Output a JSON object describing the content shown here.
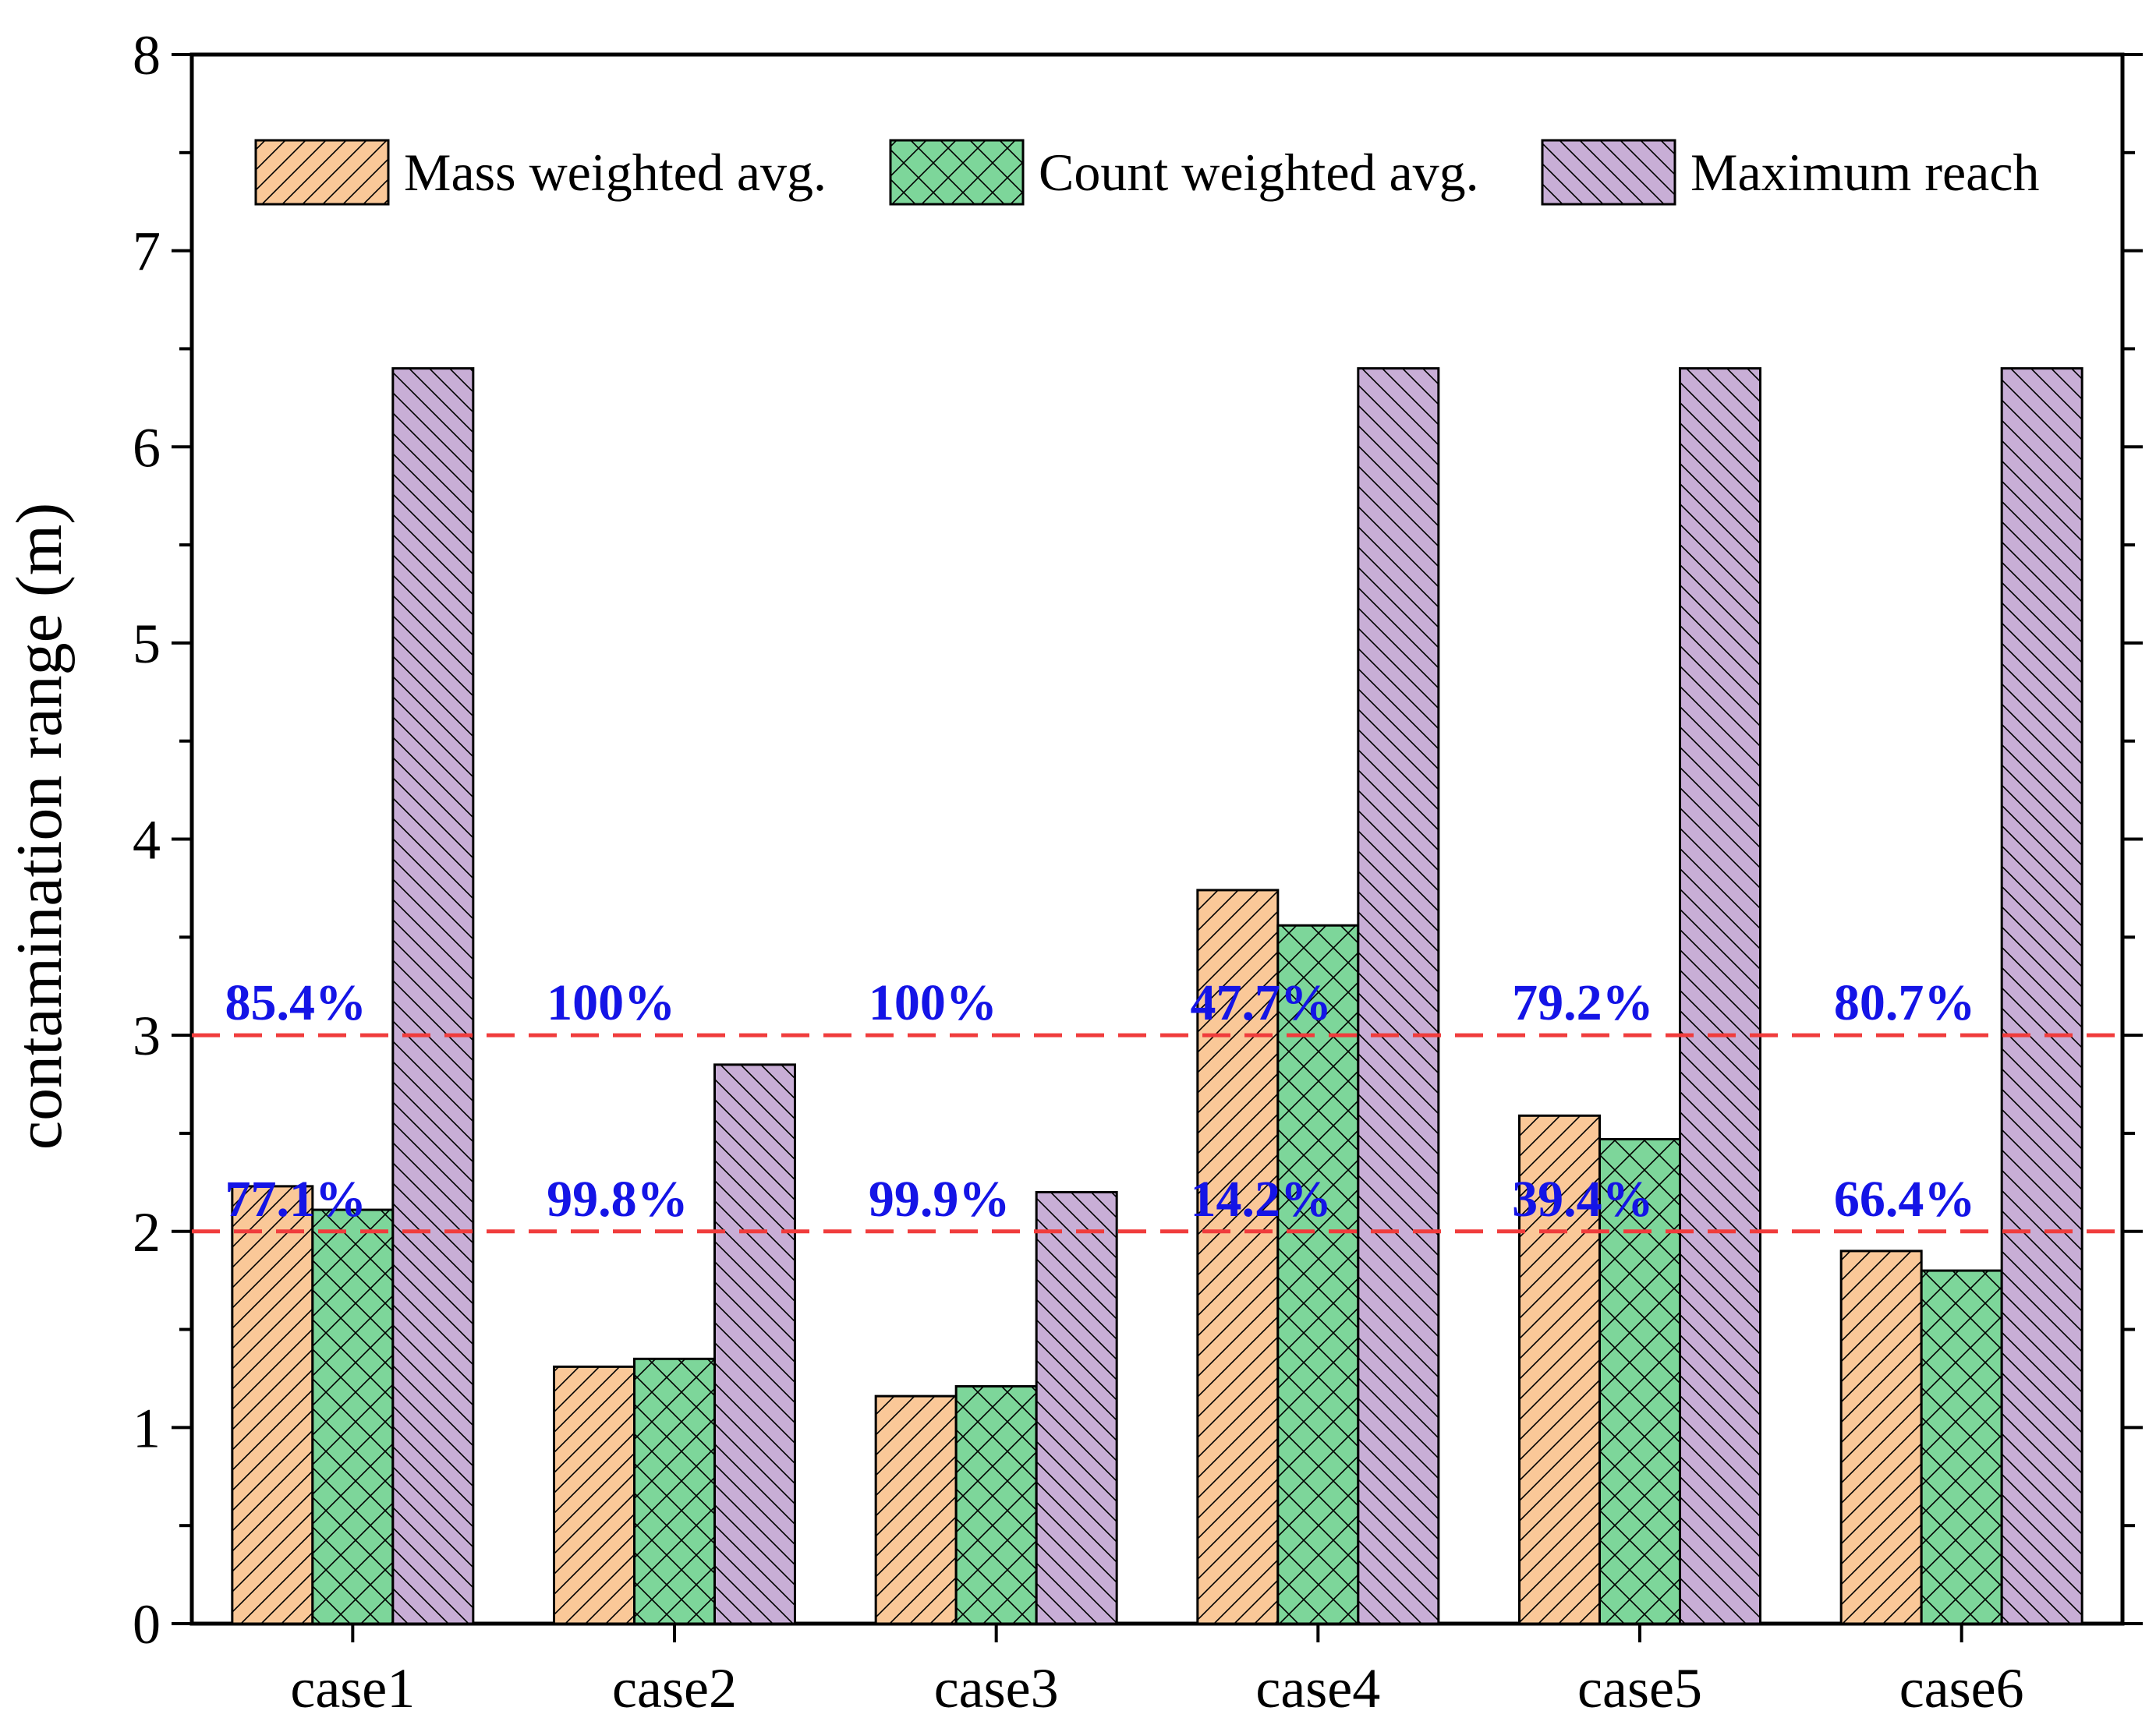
{
  "chart_data": {
    "type": "bar",
    "title": "",
    "xlabel": "",
    "ylabel": "contamination range (m)",
    "ylim": [
      0,
      8
    ],
    "yticks": [
      0,
      1,
      2,
      3,
      4,
      5,
      6,
      7,
      8
    ],
    "categories": [
      "case1",
      "case2",
      "case3",
      "case4",
      "case5",
      "case6"
    ],
    "series": [
      {
        "name": "Mass weighted avg.",
        "values": [
          2.23,
          1.31,
          1.16,
          3.74,
          2.59,
          1.9
        ],
        "color": "#FAC898",
        "pattern": "forward-hatch"
      },
      {
        "name": "Count weighted avg.",
        "values": [
          2.11,
          1.35,
          1.21,
          3.56,
          2.47,
          1.8
        ],
        "color": "#7DD69A",
        "pattern": "cross-hatch"
      },
      {
        "name": "Maximum reach",
        "values": [
          6.4,
          2.85,
          2.2,
          6.4,
          6.4,
          6.4
        ],
        "color": "#C8AED6",
        "pattern": "back-hatch"
      }
    ],
    "reference_lines": [
      {
        "y": 3,
        "color": "#F03C3C",
        "style": "dashed"
      },
      {
        "y": 2,
        "color": "#F03C3C",
        "style": "dashed"
      }
    ],
    "annotations": [
      {
        "category": "case1",
        "level": 3,
        "text": "85.4%"
      },
      {
        "category": "case2",
        "level": 3,
        "text": "100%"
      },
      {
        "category": "case3",
        "level": 3,
        "text": "100%"
      },
      {
        "category": "case4",
        "level": 3,
        "text": "47.7%"
      },
      {
        "category": "case5",
        "level": 3,
        "text": "79.2%"
      },
      {
        "category": "case6",
        "level": 3,
        "text": "80.7%"
      },
      {
        "category": "case1",
        "level": 2,
        "text": "77.1%"
      },
      {
        "category": "case2",
        "level": 2,
        "text": "99.8%"
      },
      {
        "category": "case3",
        "level": 2,
        "text": "99.9%"
      },
      {
        "category": "case4",
        "level": 2,
        "text": "14.2%"
      },
      {
        "category": "case5",
        "level": 2,
        "text": "39.4%"
      },
      {
        "category": "case6",
        "level": 2,
        "text": "66.4%"
      }
    ],
    "annotation_color": "#1414E6",
    "legend_position": "top"
  }
}
